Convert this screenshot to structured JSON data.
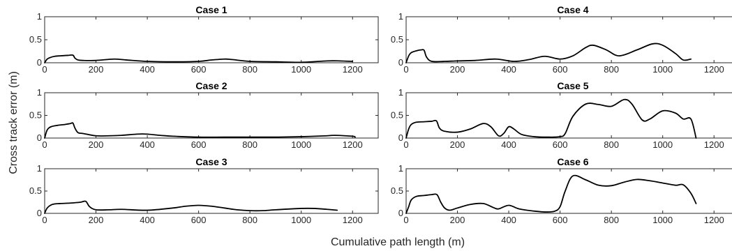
{
  "figure": {
    "xlabel": "Cumulative path length (m)",
    "ylabel": "Cross track error (m)",
    "line_color": "#000000",
    "axis_color": "#262626"
  },
  "chart_data": [
    {
      "type": "line",
      "title": "Case 1",
      "xlim": [
        0,
        1300
      ],
      "ylim": [
        0,
        1
      ],
      "xticks": [
        0,
        200,
        400,
        600,
        800,
        1000,
        1200
      ],
      "yticks": [
        0,
        0.5,
        1
      ],
      "xtick_labels": [
        "0",
        "200",
        "400",
        "600",
        "800",
        "1000",
        "1200"
      ],
      "ytick_labels": [
        "0",
        "0.5",
        "1"
      ],
      "series": [
        {
          "x": [
            0,
            10,
            25,
            40,
            60,
            90,
            110,
            118,
            130,
            150,
            200,
            270,
            320,
            400,
            500,
            600,
            650,
            700,
            730,
            800,
            900,
            1000,
            1100,
            1150,
            1200
          ],
          "y": [
            0,
            0.08,
            0.12,
            0.14,
            0.15,
            0.16,
            0.165,
            0.1,
            0.06,
            0.05,
            0.05,
            0.08,
            0.06,
            0.03,
            0.02,
            0.03,
            0.06,
            0.08,
            0.07,
            0.03,
            0.02,
            0.01,
            0.04,
            0.04,
            0.03
          ]
        }
      ]
    },
    {
      "type": "line",
      "title": "Case 2",
      "xlim": [
        0,
        1300
      ],
      "ylim": [
        0,
        1
      ],
      "xticks": [
        0,
        200,
        400,
        600,
        800,
        1000,
        1200
      ],
      "yticks": [
        0,
        0.5,
        1
      ],
      "xtick_labels": [
        "0",
        "200",
        "400",
        "600",
        "800",
        "1000",
        "1200"
      ],
      "ytick_labels": [
        "0",
        "0.5",
        "1"
      ],
      "series": [
        {
          "x": [
            0,
            10,
            25,
            50,
            80,
            100,
            110,
            118,
            130,
            150,
            200,
            250,
            300,
            380,
            450,
            500,
            600,
            700,
            800,
            900,
            1000,
            1100,
            1130,
            1200,
            1210
          ],
          "y": [
            0,
            0.18,
            0.25,
            0.28,
            0.3,
            0.32,
            0.33,
            0.22,
            0.12,
            0.1,
            0.05,
            0.05,
            0.06,
            0.09,
            0.06,
            0.04,
            0.02,
            0.02,
            0.02,
            0.02,
            0.03,
            0.05,
            0.06,
            0.04,
            0.02
          ]
        }
      ]
    },
    {
      "type": "line",
      "title": "Case 3",
      "xlim": [
        0,
        1300
      ],
      "ylim": [
        0,
        1
      ],
      "xticks": [
        0,
        200,
        400,
        600,
        800,
        1000,
        1200
      ],
      "yticks": [
        0,
        0.5,
        1
      ],
      "xtick_labels": [
        "0",
        "200",
        "400",
        "600",
        "800",
        "1000",
        "1200"
      ],
      "ytick_labels": [
        "0",
        "0.5",
        "1"
      ],
      "series": [
        {
          "x": [
            0,
            10,
            30,
            60,
            100,
            140,
            160,
            175,
            200,
            250,
            300,
            400,
            500,
            550,
            600,
            650,
            700,
            750,
            800,
            850,
            900,
            1000,
            1050,
            1100,
            1140
          ],
          "y": [
            0,
            0.12,
            0.2,
            0.22,
            0.23,
            0.25,
            0.27,
            0.15,
            0.08,
            0.08,
            0.09,
            0.07,
            0.12,
            0.16,
            0.18,
            0.16,
            0.12,
            0.08,
            0.06,
            0.06,
            0.08,
            0.11,
            0.11,
            0.09,
            0.07
          ]
        }
      ]
    },
    {
      "type": "line",
      "title": "Case 4",
      "xlim": [
        0,
        1300
      ],
      "ylim": [
        0,
        1
      ],
      "xticks": [
        0,
        200,
        400,
        600,
        800,
        1000,
        1200
      ],
      "yticks": [
        0,
        0.5,
        1
      ],
      "xtick_labels": [
        "0",
        "200",
        "400",
        "600",
        "800",
        "1000",
        "1200"
      ],
      "ytick_labels": [
        "0",
        "0.5",
        "1"
      ],
      "series": [
        {
          "x": [
            0,
            10,
            20,
            40,
            60,
            70,
            80,
            100,
            150,
            200,
            270,
            350,
            420,
            480,
            540,
            600,
            650,
            700,
            730,
            780,
            830,
            900,
            960,
            1000,
            1050,
            1080,
            1110
          ],
          "y": [
            0,
            0.15,
            0.22,
            0.26,
            0.28,
            0.27,
            0.12,
            0.03,
            0.03,
            0.04,
            0.05,
            0.08,
            0.03,
            0.07,
            0.14,
            0.08,
            0.15,
            0.33,
            0.38,
            0.28,
            0.15,
            0.28,
            0.41,
            0.38,
            0.2,
            0.06,
            0.08
          ]
        }
      ]
    },
    {
      "type": "line",
      "title": "Case 5",
      "xlim": [
        0,
        1300
      ],
      "ylim": [
        0,
        1
      ],
      "xticks": [
        0,
        200,
        400,
        600,
        800,
        1000,
        1200
      ],
      "yticks": [
        0,
        0.5,
        1
      ],
      "xtick_labels": [
        "0",
        "200",
        "400",
        "600",
        "800",
        "1000",
        "1200"
      ],
      "ytick_labels": [
        "0",
        "0.5",
        "1"
      ],
      "series": [
        {
          "x": [
            0,
            10,
            20,
            40,
            70,
            100,
            118,
            130,
            150,
            200,
            250,
            300,
            330,
            360,
            380,
            400,
            420,
            450,
            500,
            550,
            600,
            620,
            650,
            700,
            750,
            800,
            850,
            880,
            920,
            950,
            1000,
            1050,
            1080,
            1110,
            1130
          ],
          "y": [
            0,
            0.2,
            0.3,
            0.35,
            0.36,
            0.37,
            0.38,
            0.22,
            0.15,
            0.13,
            0.2,
            0.32,
            0.25,
            0.05,
            0.1,
            0.25,
            0.2,
            0.08,
            0.03,
            0.02,
            0.03,
            0.1,
            0.48,
            0.75,
            0.74,
            0.7,
            0.85,
            0.75,
            0.4,
            0.42,
            0.6,
            0.55,
            0.42,
            0.42,
            0.0
          ]
        }
      ]
    },
    {
      "type": "line",
      "title": "Case 6",
      "xlim": [
        0,
        1300
      ],
      "ylim": [
        0,
        1
      ],
      "xticks": [
        0,
        200,
        400,
        600,
        800,
        1000,
        1200
      ],
      "yticks": [
        0,
        0.5,
        1
      ],
      "xtick_labels": [
        "0",
        "200",
        "400",
        "600",
        "800",
        "1000",
        "1200"
      ],
      "ytick_labels": [
        "0",
        "0.5",
        "1"
      ],
      "series": [
        {
          "x": [
            0,
            10,
            20,
            40,
            70,
            100,
            120,
            135,
            150,
            170,
            200,
            250,
            300,
            340,
            360,
            400,
            440,
            500,
            550,
            580,
            600,
            620,
            650,
            700,
            750,
            800,
            850,
            900,
            950,
            1000,
            1050,
            1080,
            1110,
            1130
          ],
          "y": [
            0,
            0.15,
            0.3,
            0.38,
            0.4,
            0.42,
            0.42,
            0.25,
            0.12,
            0.07,
            0.12,
            0.2,
            0.22,
            0.13,
            0.1,
            0.18,
            0.1,
            0.05,
            0.03,
            0.05,
            0.15,
            0.5,
            0.84,
            0.75,
            0.63,
            0.62,
            0.7,
            0.76,
            0.73,
            0.68,
            0.63,
            0.64,
            0.45,
            0.22
          ]
        }
      ]
    }
  ]
}
